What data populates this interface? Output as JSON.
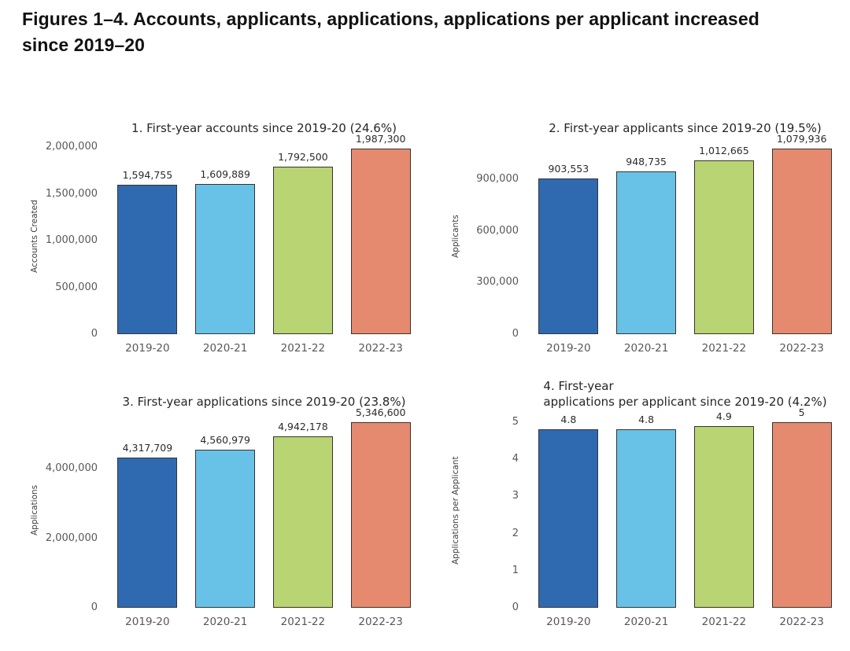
{
  "header": {
    "title_line1": "Figures 1–4. Accounts, applicants, applications, applications per applicant increased",
    "title_line2": "since 2019–20"
  },
  "colors": {
    "bars": [
      "#2f6ab1",
      "#68c2e7",
      "#b9d472",
      "#e68a6f"
    ],
    "bar_border": "#363430",
    "header_text": "#121212",
    "chart_title_text": "#262626",
    "tick_text": "#585858",
    "value_label_text": "#2b2b2b",
    "background": "#ffffff"
  },
  "chart_data": [
    {
      "type": "bar",
      "title": "1. First-year accounts since 2019-20 (24.6%)",
      "title_lines": [
        "1. First-year accounts since 2019-20 (24.6%)"
      ],
      "xlabel": "",
      "ylabel": "Accounts Created",
      "categories": [
        "2019-20",
        "2020-21",
        "2021-22",
        "2022-23"
      ],
      "values": [
        1594755,
        1609889,
        1792500,
        1987300
      ],
      "value_labels": [
        "1,594,755",
        "1,609,889",
        "1,792,500",
        "1,987,300"
      ],
      "yticks": [
        0,
        500000,
        1000000,
        1500000,
        2000000
      ],
      "ytick_labels": [
        "0",
        "500,000",
        "1,000,000",
        "1,500,000",
        "2,000,000"
      ],
      "ylim": [
        0,
        2086665
      ],
      "grid": false,
      "legend": null
    },
    {
      "type": "bar",
      "title": "2. First-year applicants since 2019-20 (19.5%)",
      "title_lines": [
        "2. First-year applicants since 2019-20 (19.5%)"
      ],
      "xlabel": "",
      "ylabel": "Applicants",
      "categories": [
        "2019-20",
        "2020-21",
        "2021-22",
        "2022-23"
      ],
      "values": [
        903553,
        948735,
        1012665,
        1079936
      ],
      "value_labels": [
        "903,553",
        "948,735",
        "1,012,665",
        "1,079,936"
      ],
      "yticks": [
        0,
        300000,
        600000,
        900000
      ],
      "ytick_labels": [
        "0",
        "300,000",
        "600,000",
        "900,000"
      ],
      "ylim": [
        0,
        1133933
      ],
      "grid": false,
      "legend": null
    },
    {
      "type": "bar",
      "title": "3. First-year applications since 2019-20 (23.8%)",
      "title_lines": [
        "3. First-year applications since 2019-20 (23.8%)"
      ],
      "xlabel": "",
      "ylabel": "Applications",
      "categories": [
        "2019-20",
        "2020-21",
        "2021-22",
        "2022-23"
      ],
      "values": [
        4317709,
        4560979,
        4942178,
        5346600
      ],
      "value_labels": [
        "4,317,709",
        "4,560,979",
        "4,942,178",
        "5,346,600"
      ],
      "yticks": [
        0,
        2000000,
        4000000
      ],
      "ytick_labels": [
        "0",
        "2,000,000",
        "4,000,000"
      ],
      "ylim": [
        0,
        5613930
      ],
      "grid": false,
      "legend": null
    },
    {
      "type": "bar",
      "title": "4. First-year applications per applicant since 2019-20 (4.2%)",
      "title_lines": [
        "4. First-year",
        "applications per applicant since 2019-20 (4.2%)"
      ],
      "xlabel": "",
      "ylabel": "Applications per Applicant",
      "categories": [
        "2019-20",
        "2020-21",
        "2021-22",
        "2022-23"
      ],
      "values": [
        4.8,
        4.8,
        4.9,
        5
      ],
      "value_labels": [
        "4.8",
        "4.8",
        "4.9",
        "5"
      ],
      "yticks": [
        0,
        1,
        2,
        3,
        4,
        5
      ],
      "ytick_labels": [
        "0",
        "1",
        "2",
        "3",
        "4",
        "5"
      ],
      "ylim": [
        0,
        5.25
      ],
      "grid": false,
      "legend": null
    }
  ]
}
